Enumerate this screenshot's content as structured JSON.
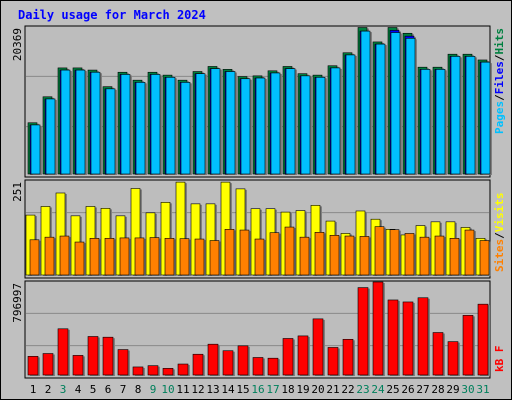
{
  "title": "Daily usage for March 2024",
  "colors": {
    "hits": "#008040",
    "files": "#0000ff",
    "pages": "#00c0ff",
    "visits": "#ffff00",
    "sites": "#ff8000",
    "kbytes": "#ff0000",
    "weekend_day": "#00805c",
    "weekday": "#000000"
  },
  "chart_data": [
    {
      "type": "bar",
      "categories": [
        "1",
        "2",
        "3",
        "4",
        "5",
        "6",
        "7",
        "8",
        "9",
        "10",
        "11",
        "12",
        "13",
        "14",
        "15",
        "16",
        "17",
        "18",
        "19",
        "20",
        "21",
        "22",
        "23",
        "24",
        "25",
        "26",
        "27",
        "28",
        "29",
        "30",
        "31"
      ],
      "weekend_flags": [
        false,
        false,
        true,
        false,
        false,
        false,
        false,
        false,
        true,
        true,
        false,
        false,
        false,
        false,
        false,
        true,
        true,
        false,
        false,
        false,
        false,
        false,
        true,
        true,
        false,
        false,
        false,
        false,
        false,
        true,
        true
      ],
      "series_labels": [
        "Pages",
        "/",
        "Files",
        "/",
        "Hits"
      ],
      "ylabel_max": "20369",
      "ylim": [
        0,
        20369
      ],
      "series": [
        {
          "name": "Hits",
          "values": [
            7100,
            10700,
            14700,
            14700,
            14400,
            12100,
            14100,
            13000,
            14100,
            13700,
            13000,
            14200,
            14900,
            14500,
            13500,
            13600,
            14300,
            14900,
            13900,
            13700,
            15000,
            16800,
            20300,
            18300,
            20300,
            19500,
            14800,
            14800,
            16600,
            16600,
            15800
          ]
        },
        {
          "name": "Files",
          "values": [
            6800,
            10400,
            14400,
            14400,
            14100,
            11800,
            13800,
            12700,
            13800,
            13400,
            12700,
            13900,
            14600,
            14200,
            13200,
            13300,
            14000,
            14600,
            13600,
            13400,
            14700,
            16500,
            19800,
            18000,
            19900,
            19100,
            14500,
            14500,
            16300,
            16300,
            15500
          ]
        },
        {
          "name": "Pages",
          "values": [
            6800,
            10400,
            14400,
            14400,
            14100,
            11800,
            13800,
            12700,
            13800,
            13400,
            12700,
            13900,
            14600,
            14200,
            13200,
            13300,
            14000,
            14600,
            13600,
            13400,
            14700,
            16500,
            19800,
            18000,
            19600,
            18800,
            14500,
            14500,
            16300,
            16300,
            15500
          ]
        }
      ]
    },
    {
      "type": "bar",
      "categories": [
        "1",
        "2",
        "3",
        "4",
        "5",
        "6",
        "7",
        "8",
        "9",
        "10",
        "11",
        "12",
        "13",
        "14",
        "15",
        "16",
        "17",
        "18",
        "19",
        "20",
        "21",
        "22",
        "23",
        "24",
        "25",
        "26",
        "27",
        "28",
        "29",
        "30",
        "31"
      ],
      "series_labels": [
        "Sites",
        "/",
        "Visits"
      ],
      "ylabel_max": "251",
      "ylim": [
        0,
        251
      ],
      "series": [
        {
          "name": "Visits",
          "values": [
            160,
            183,
            219,
            158,
            183,
            178,
            158,
            231,
            166,
            194,
            248,
            190,
            190,
            248,
            230,
            177,
            177,
            168,
            172,
            186,
            144,
            111,
            171,
            149,
            122,
            107,
            132,
            142,
            142,
            127,
            98
          ]
        },
        {
          "name": "Sites",
          "values": [
            94,
            101,
            104,
            88,
            98,
            98,
            99,
            99,
            100,
            98,
            97,
            96,
            92,
            122,
            120,
            96,
            113,
            128,
            101,
            114,
            106,
            104,
            103,
            129,
            121,
            111,
            101,
            104,
            98,
            120,
            92
          ]
        }
      ]
    },
    {
      "type": "bar",
      "categories": [
        "1",
        "2",
        "3",
        "4",
        "5",
        "6",
        "7",
        "8",
        "9",
        "10",
        "11",
        "12",
        "13",
        "14",
        "15",
        "16",
        "17",
        "18",
        "19",
        "20",
        "21",
        "22",
        "23",
        "24",
        "25",
        "26",
        "27",
        "28",
        "29",
        "30",
        "31"
      ],
      "series_labels": [
        "kB F"
      ],
      "ylabel_max": "796997",
      "ylim": [
        0,
        796997
      ],
      "series": [
        {
          "name": "kB F",
          "values": [
            160000,
            184000,
            396000,
            168000,
            330000,
            324000,
            218000,
            69000,
            80000,
            57000,
            94000,
            178000,
            264000,
            208000,
            250000,
            150000,
            144000,
            313000,
            335000,
            481000,
            236000,
            306000,
            749000,
            796997,
            643000,
            626000,
            662000,
            364000,
            286000,
            511000,
            607000
          ]
        }
      ]
    }
  ]
}
